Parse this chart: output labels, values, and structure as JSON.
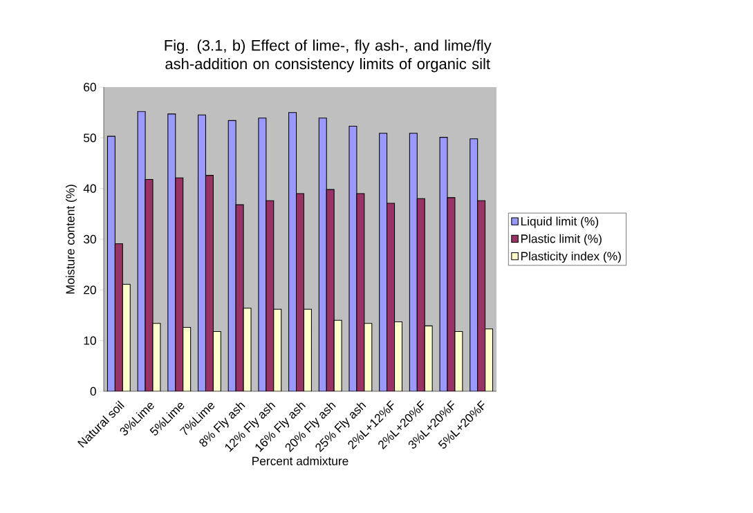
{
  "chart_data": {
    "type": "bar",
    "title": "Fig. (3.1, b) Effect of lime-, fly ash-, and lime/fly ash-addition on consistency limits of organic silt",
    "xlabel": "Percent admixture",
    "ylabel": "Moisture content (%)",
    "categories": [
      "Natural soil",
      "3%Lime",
      "5%Lime",
      "7%Lime",
      "8% Fly ash",
      "12% Fly ash",
      "16% Fly ash",
      "20% Fly ash",
      "25% Fly ash",
      "2%L+12%F",
      "2%L+20%F",
      "3%L+20%F",
      "5%L+20%F"
    ],
    "series": [
      {
        "name": "Liquid limit (%)",
        "color": "#9999ff",
        "values": [
          50.3,
          55.2,
          54.7,
          54.5,
          53.4,
          53.9,
          55.0,
          53.9,
          52.3,
          50.9,
          50.9,
          50.1,
          49.8
        ]
      },
      {
        "name": "Plastic limit (%)",
        "color": "#993366",
        "values": [
          29.1,
          41.8,
          42.1,
          42.6,
          36.8,
          37.6,
          39.0,
          39.8,
          39.0,
          37.1,
          38.0,
          38.2,
          37.6
        ]
      },
      {
        "name": "Plasticity index (%)",
        "color": "#ffffcc",
        "values": [
          21.1,
          13.4,
          12.6,
          11.8,
          16.4,
          16.2,
          16.2,
          14.0,
          13.4,
          13.7,
          12.9,
          11.8,
          12.3
        ]
      }
    ],
    "ylim": [
      0,
      60
    ],
    "yticks": [
      0,
      10,
      20,
      30,
      40,
      50,
      60
    ],
    "legend": "right"
  }
}
